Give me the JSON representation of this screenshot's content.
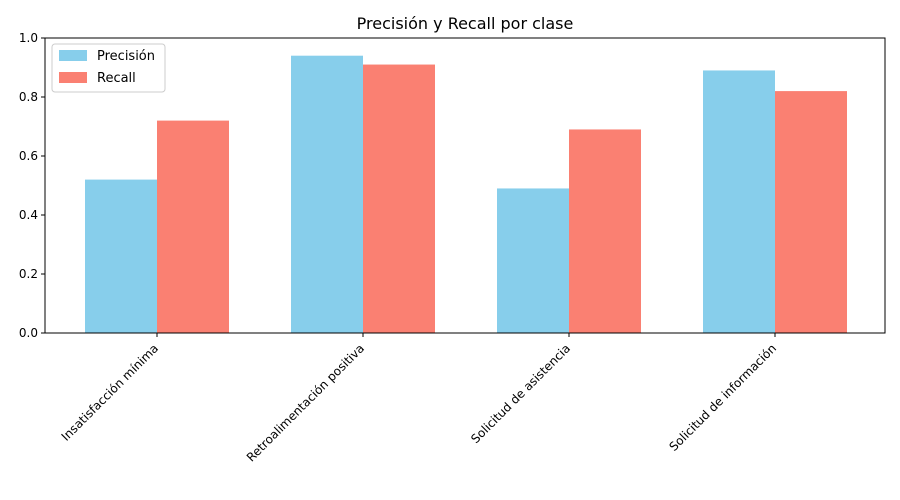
{
  "chart_data": {
    "type": "bar",
    "title": "Precisión y Recall por clase",
    "xlabel": "",
    "ylabel": "",
    "categories": [
      "Insatisfacción mínima",
      "Retroalimentación positiva",
      "Solicitud  de asistencia",
      "Solicitud de información"
    ],
    "series": [
      {
        "name": "Precisión",
        "values": [
          0.52,
          0.94,
          0.49,
          0.89
        ],
        "color": "#87ceeb"
      },
      {
        "name": "Recall",
        "values": [
          0.72,
          0.91,
          0.69,
          0.82
        ],
        "color": "#fa8072"
      }
    ],
    "ylim": [
      0,
      1.0
    ],
    "yticks": [
      "0.0",
      "0.2",
      "0.4",
      "0.6",
      "0.8",
      "1.0"
    ],
    "grid": false,
    "legend_position": "top-left"
  }
}
